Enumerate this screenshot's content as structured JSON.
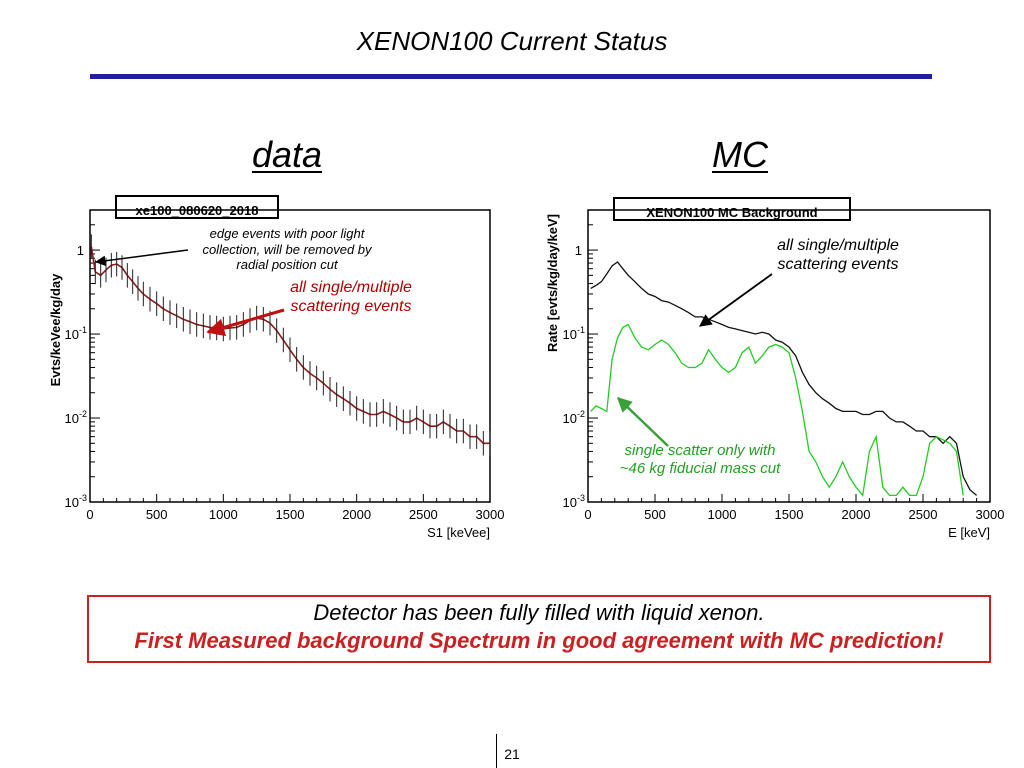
{
  "slide": {
    "title": "XENON100 Current Status",
    "data_heading": "data",
    "mc_heading": "MC",
    "conclusion_line1": "Detector has been fully filled with liquid xenon.",
    "conclusion_line2": "First Measured background Spectrum in good agreement with MC prediction!",
    "page_number": "21"
  },
  "annotations": {
    "edge_events": "edge events with poor light collection, will be removed by radial position cut",
    "data_all_scattering": "all single/multiple scattering events",
    "mc_all_scattering": "all single/multiple scattering events",
    "mc_single_scatter": "single scatter only with ~46 kg fiducial mass cut"
  },
  "chart_data": [
    {
      "type": "line",
      "title": "xe100_080620_2018",
      "xlabel": "S1 [keVee]",
      "ylabel": "Evts/keVee/kg/day",
      "xlim": [
        0,
        3000
      ],
      "ylim": [
        0.001,
        3
      ],
      "yscale": "log",
      "xticks": [
        0,
        500,
        1000,
        1500,
        2000,
        2500,
        3000
      ],
      "yticks": [
        {
          "value": 1,
          "label": "1"
        },
        {
          "value": 0.1,
          "label": "10",
          "exp": "-1"
        },
        {
          "value": 0.01,
          "label": "10",
          "exp": "-2"
        },
        {
          "value": 0.001,
          "label": "10",
          "exp": "-3"
        }
      ],
      "grid": false,
      "colors": {
        "data": "#8b1a1a",
        "errorbars": "#222222"
      },
      "series": [
        {
          "x": [
            10,
            40,
            80,
            120,
            160,
            200,
            240,
            280,
            320,
            360,
            400,
            450,
            500,
            550,
            600,
            650,
            700,
            750,
            800,
            850,
            900,
            950,
            1000,
            1050,
            1100,
            1150,
            1200,
            1250,
            1300,
            1350,
            1400,
            1450,
            1500,
            1550,
            1600,
            1650,
            1700,
            1750,
            1800,
            1850,
            1900,
            1950,
            2000,
            2050,
            2100,
            2150,
            2200,
            2250,
            2300,
            2350,
            2400,
            2450,
            2500,
            2550,
            2600,
            2650,
            2700,
            2750,
            2800,
            2850,
            2900,
            2950,
            3000
          ],
          "y": [
            1.1,
            0.55,
            0.5,
            0.58,
            0.66,
            0.68,
            0.62,
            0.5,
            0.42,
            0.35,
            0.3,
            0.26,
            0.23,
            0.2,
            0.18,
            0.165,
            0.15,
            0.14,
            0.13,
            0.125,
            0.12,
            0.118,
            0.115,
            0.118,
            0.12,
            0.13,
            0.145,
            0.155,
            0.15,
            0.135,
            0.11,
            0.085,
            0.065,
            0.05,
            0.04,
            0.034,
            0.03,
            0.026,
            0.022,
            0.019,
            0.017,
            0.015,
            0.013,
            0.012,
            0.011,
            0.011,
            0.012,
            0.011,
            0.01,
            0.009,
            0.009,
            0.01,
            0.009,
            0.008,
            0.008,
            0.009,
            0.008,
            0.007,
            0.007,
            0.006,
            0.006,
            0.005,
            0.005
          ]
        }
      ]
    },
    {
      "type": "line",
      "title": "XENON100 MC Background",
      "xlabel": "E [keV]",
      "ylabel": "Rate [evts/kg/day/keV]",
      "xlim": [
        0,
        3000
      ],
      "ylim": [
        0.001,
        3
      ],
      "yscale": "log",
      "xticks": [
        0,
        500,
        1000,
        1500,
        2000,
        2500,
        3000
      ],
      "yticks": [
        {
          "value": 1,
          "label": "1"
        },
        {
          "value": 0.1,
          "label": "10",
          "exp": "-1"
        },
        {
          "value": 0.01,
          "label": "10",
          "exp": "-2"
        },
        {
          "value": 0.001,
          "label": "10",
          "exp": "-3"
        }
      ],
      "grid": false,
      "colors": {
        "all": "#111111",
        "single": "#22cc22"
      },
      "series": [
        {
          "x": [
            20,
            60,
            100,
            140,
            180,
            220,
            260,
            300,
            350,
            400,
            450,
            500,
            550,
            600,
            650,
            700,
            750,
            800,
            850,
            900,
            950,
            1000,
            1050,
            1100,
            1150,
            1200,
            1250,
            1300,
            1350,
            1400,
            1450,
            1500,
            1550,
            1600,
            1650,
            1700,
            1750,
            1800,
            1850,
            1900,
            1950,
            2000,
            2050,
            2100,
            2150,
            2200,
            2250,
            2300,
            2350,
            2400,
            2450,
            2500,
            2550,
            2600,
            2650,
            2700,
            2750,
            2800,
            2850,
            2900
          ],
          "y": [
            0.35,
            0.38,
            0.42,
            0.52,
            0.65,
            0.72,
            0.6,
            0.5,
            0.42,
            0.35,
            0.3,
            0.28,
            0.25,
            0.24,
            0.22,
            0.2,
            0.18,
            0.16,
            0.16,
            0.15,
            0.14,
            0.13,
            0.12,
            0.115,
            0.11,
            0.105,
            0.1,
            0.105,
            0.1,
            0.085,
            0.08,
            0.07,
            0.055,
            0.035,
            0.025,
            0.02,
            0.017,
            0.015,
            0.013,
            0.012,
            0.012,
            0.012,
            0.011,
            0.011,
            0.012,
            0.012,
            0.01,
            0.009,
            0.009,
            0.008,
            0.007,
            0.007,
            0.006,
            0.006,
            0.005,
            0.006,
            0.005,
            0.002,
            0.0014,
            0.0012
          ]
        },
        {
          "x": [
            20,
            60,
            100,
            140,
            180,
            220,
            260,
            300,
            350,
            400,
            450,
            500,
            550,
            600,
            650,
            700,
            750,
            800,
            850,
            900,
            950,
            1000,
            1050,
            1100,
            1150,
            1200,
            1250,
            1300,
            1350,
            1400,
            1450,
            1500,
            1550,
            1600,
            1650,
            1700,
            1750,
            1800,
            1850,
            1900,
            1950,
            2000,
            2050,
            2100,
            2150,
            2200,
            2250,
            2300,
            2350,
            2400,
            2450,
            2500,
            2550,
            2600,
            2650,
            2700,
            2750,
            2800
          ],
          "y": [
            0.012,
            0.014,
            0.013,
            0.012,
            0.05,
            0.09,
            0.12,
            0.13,
            0.09,
            0.07,
            0.065,
            0.075,
            0.085,
            0.075,
            0.06,
            0.045,
            0.04,
            0.04,
            0.045,
            0.065,
            0.05,
            0.04,
            0.035,
            0.04,
            0.06,
            0.07,
            0.045,
            0.055,
            0.07,
            0.075,
            0.07,
            0.06,
            0.03,
            0.012,
            0.004,
            0.003,
            0.002,
            0.0015,
            0.002,
            0.003,
            0.002,
            0.0015,
            0.0012,
            0.004,
            0.006,
            0.0015,
            0.0012,
            0.0012,
            0.0015,
            0.0012,
            0.0012,
            0.002,
            0.005,
            0.006,
            0.0055,
            0.005,
            0.004,
            0.0012
          ]
        }
      ]
    }
  ]
}
